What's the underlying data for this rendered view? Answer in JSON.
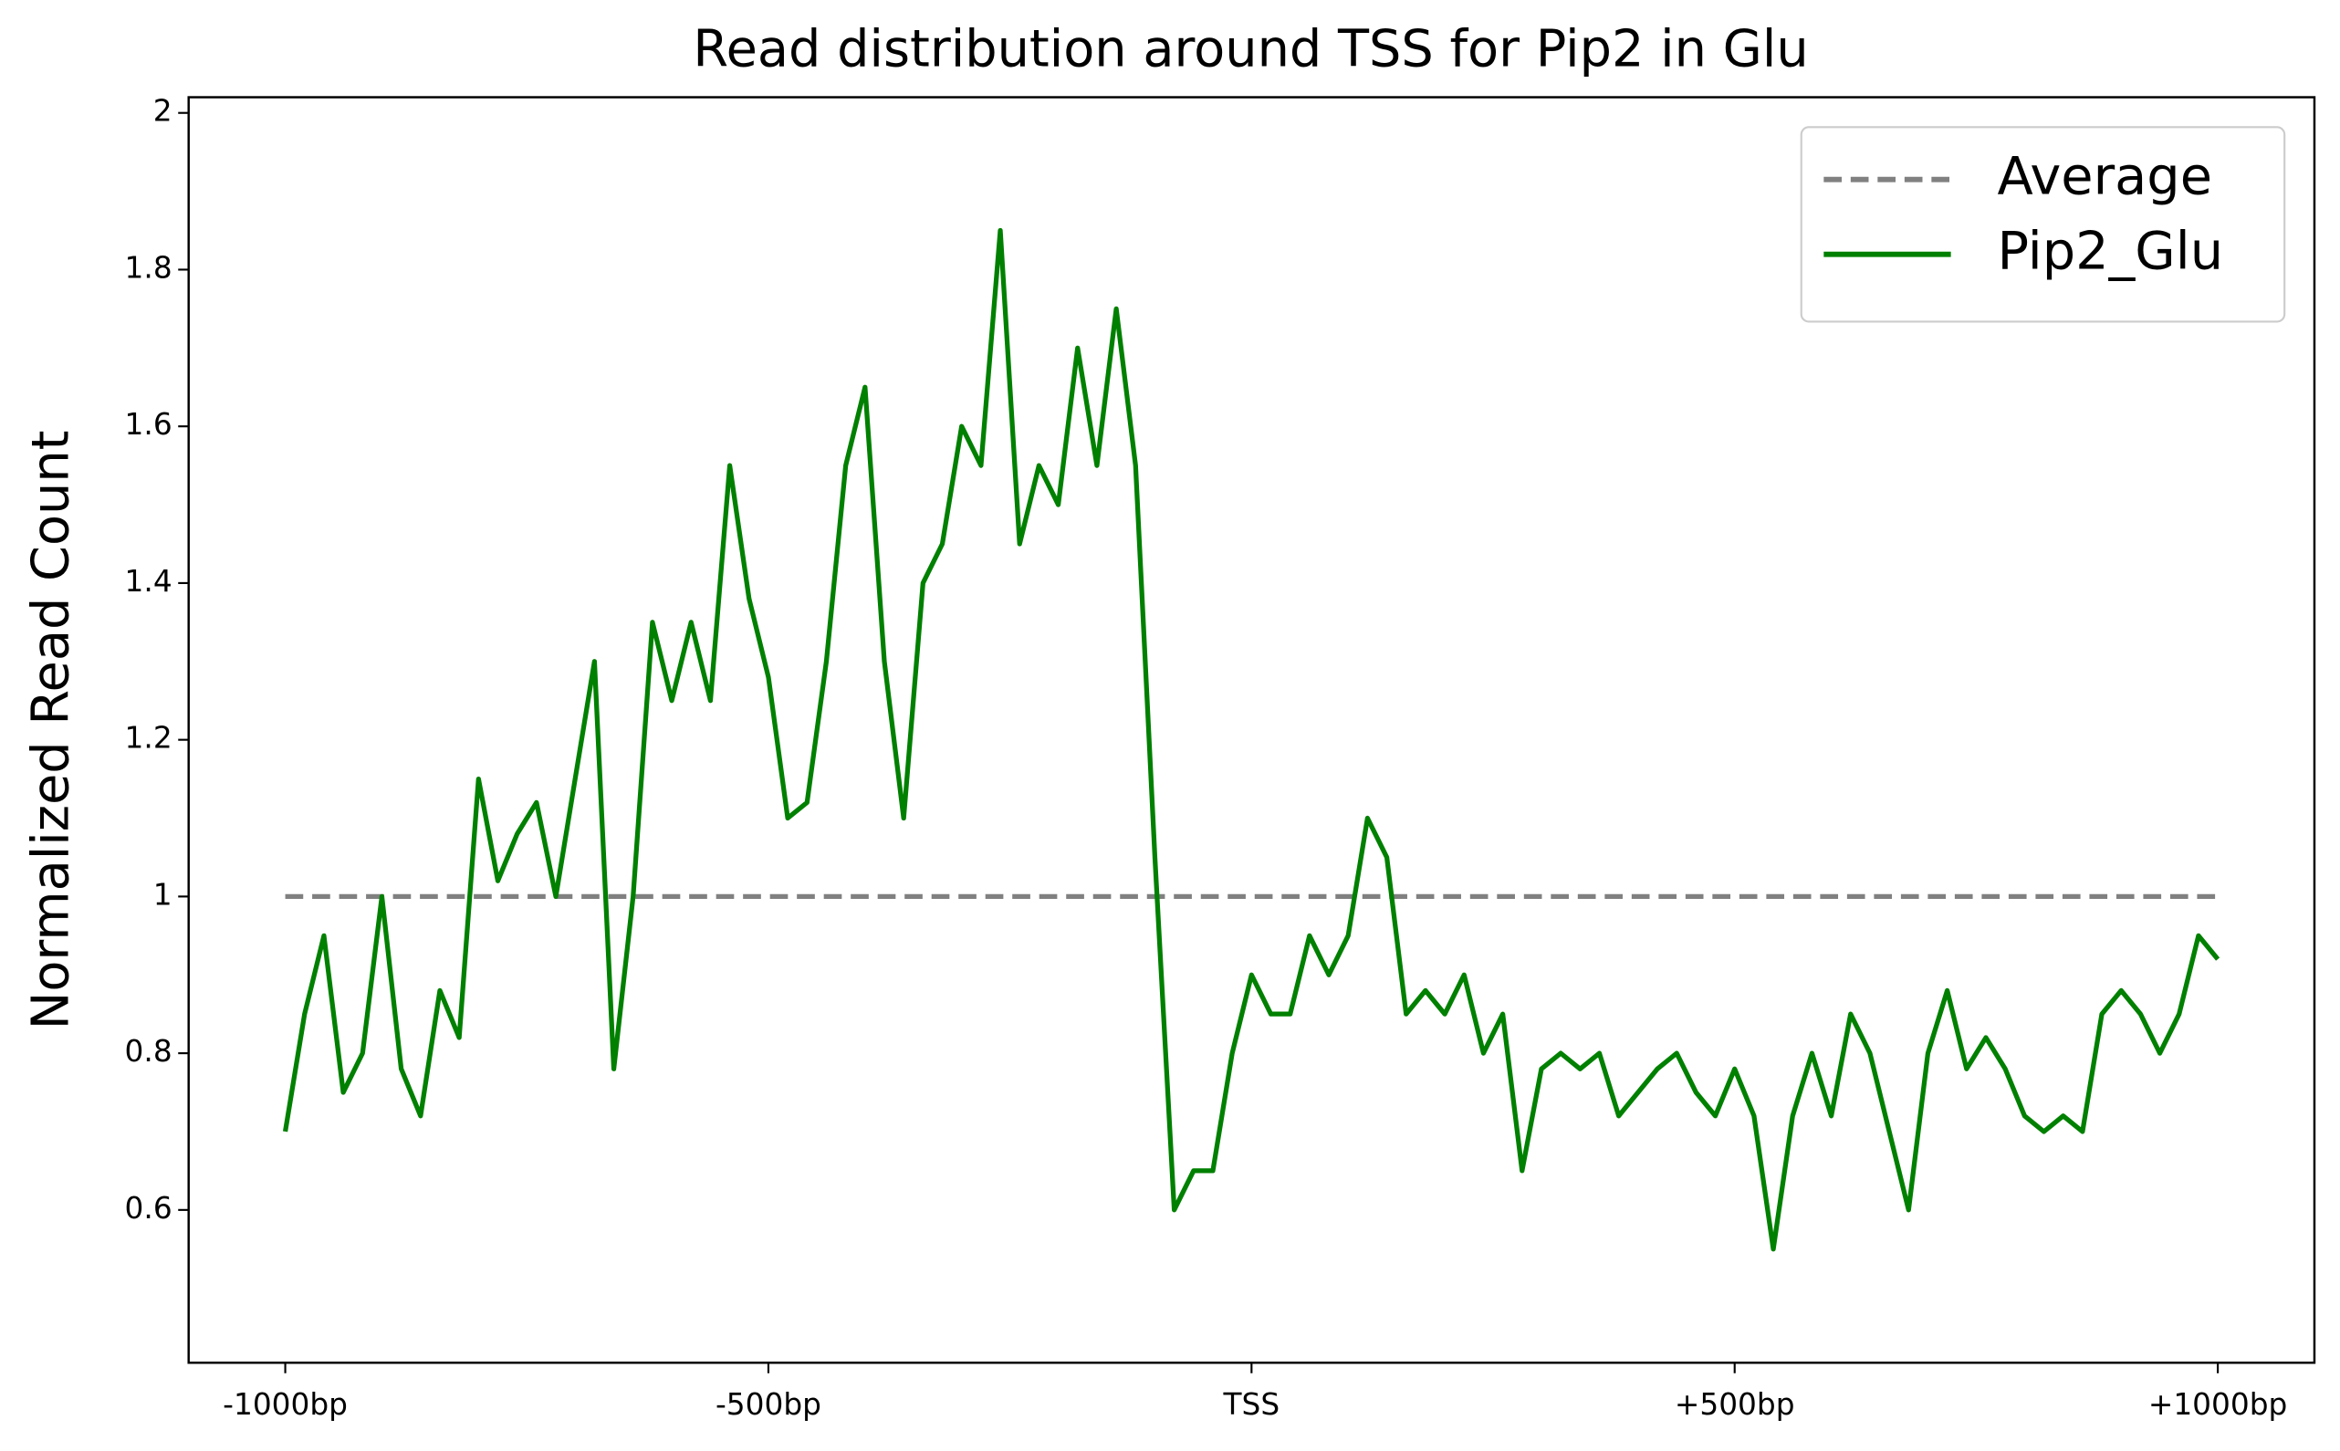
{
  "chart_data": {
    "type": "line",
    "title": "Read distribution around TSS for Pip2 in Glu",
    "y_label": "Normalized Read Count",
    "xlim": [
      -1100,
      1100
    ],
    "ylim": [
      0.405,
      2.02
    ],
    "xticks": [
      {
        "value": -1000,
        "label": "-1000bp"
      },
      {
        "value": -500,
        "label": "-500bp"
      },
      {
        "value": 0,
        "label": "TSS"
      },
      {
        "value": 500,
        "label": "+500bp"
      },
      {
        "value": 1000,
        "label": "+1000bp"
      }
    ],
    "yticks": [
      0.6,
      0.8,
      1.0,
      1.2,
      1.4,
      1.6,
      1.8,
      2.0
    ],
    "legend": "upper right",
    "series": [
      {
        "name": "Average",
        "color": "#808080",
        "dashed": true,
        "x": [
          -1000,
          1000
        ],
        "values": [
          1,
          1
        ]
      },
      {
        "name": "Pip2_Glu",
        "color": "#008000",
        "dashed": false,
        "x": [
          -1000,
          -980,
          -960,
          -940,
          -920,
          -900,
          -880,
          -860,
          -840,
          -820,
          -800,
          -780,
          -760,
          -740,
          -720,
          -700,
          -680,
          -660,
          -640,
          -620,
          -600,
          -580,
          -560,
          -540,
          -520,
          -500,
          -480,
          -460,
          -440,
          -420,
          -400,
          -380,
          -360,
          -340,
          -320,
          -300,
          -280,
          -260,
          -240,
          -220,
          -200,
          -180,
          -160,
          -140,
          -120,
          -100,
          -80,
          -60,
          -40,
          -20,
          0,
          20,
          40,
          60,
          80,
          100,
          120,
          140,
          160,
          180,
          200,
          220,
          240,
          260,
          280,
          300,
          320,
          340,
          360,
          380,
          400,
          420,
          440,
          460,
          480,
          500,
          520,
          540,
          560,
          580,
          600,
          620,
          640,
          660,
          680,
          700,
          720,
          740,
          760,
          780,
          800,
          820,
          840,
          860,
          880,
          900,
          920,
          940,
          960,
          980,
          1000
        ],
        "values": [
          0.7,
          0.85,
          0.95,
          0.75,
          0.8,
          1.0,
          0.78,
          0.72,
          0.88,
          0.82,
          1.15,
          1.02,
          1.08,
          1.12,
          1.0,
          1.15,
          1.3,
          0.78,
          1.0,
          1.35,
          1.25,
          1.35,
          1.25,
          1.55,
          1.38,
          1.28,
          1.1,
          1.12,
          1.3,
          1.55,
          1.65,
          1.3,
          1.1,
          1.4,
          1.45,
          1.6,
          1.55,
          1.85,
          1.45,
          1.55,
          1.5,
          1.7,
          1.55,
          1.75,
          1.55,
          1.05,
          0.6,
          0.65,
          0.65,
          0.8,
          0.9,
          0.85,
          0.85,
          0.95,
          0.9,
          0.95,
          1.1,
          1.05,
          0.85,
          0.88,
          0.85,
          0.9,
          0.8,
          0.85,
          0.65,
          0.78,
          0.8,
          0.78,
          0.8,
          0.72,
          0.75,
          0.78,
          0.8,
          0.75,
          0.72,
          0.78,
          0.72,
          0.55,
          0.72,
          0.8,
          0.72,
          0.85,
          0.8,
          0.7,
          0.6,
          0.8,
          0.88,
          0.78,
          0.82,
          0.78,
          0.72,
          0.7,
          0.72,
          0.7,
          0.85,
          0.88,
          0.85,
          0.8,
          0.85,
          0.95,
          0.92
        ]
      }
    ]
  }
}
